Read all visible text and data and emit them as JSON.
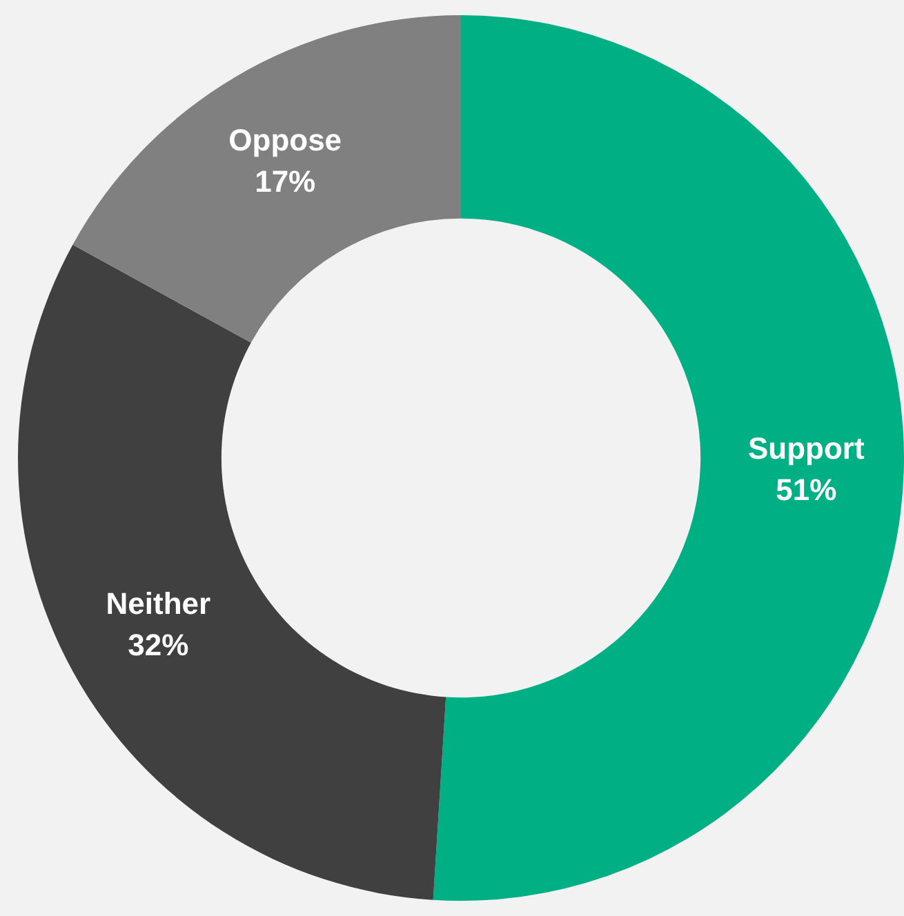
{
  "chart_data": {
    "type": "donut",
    "categories": [
      "Support",
      "Neither",
      "Oppose"
    ],
    "values": [
      51,
      32,
      17
    ],
    "colors": [
      "#00b084",
      "#404040",
      "#808080"
    ],
    "value_labels": [
      "51%",
      "32%",
      "17%"
    ],
    "legend": false
  }
}
